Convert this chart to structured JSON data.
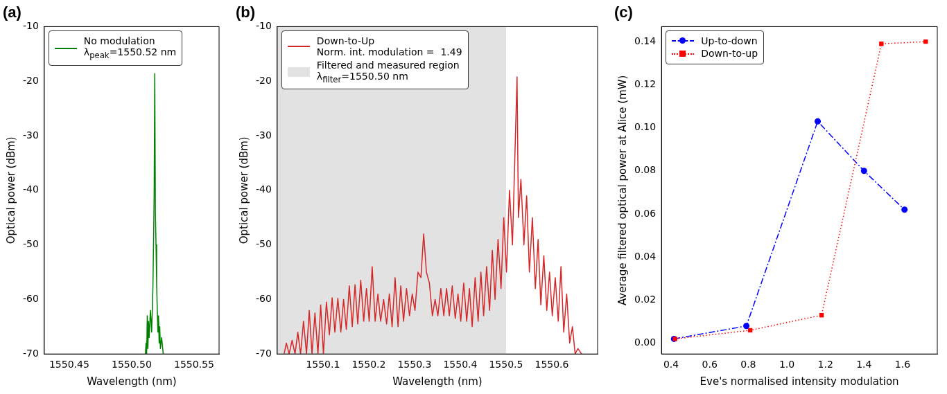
{
  "chart_data": [
    {
      "type": "line",
      "title": "(a)",
      "xlabel": "Wavelength (nm)",
      "ylabel": "Optical power (dBm)",
      "xlim": [
        1550.43,
        1550.57
      ],
      "xticks": [
        1550.45,
        {
          "value": 1550.5,
          "label": "1550.50"
        },
        1550.55
      ],
      "ylim": [
        -70,
        -10
      ],
      "yticks": [
        -70,
        -60,
        -50,
        -40,
        -30,
        -20,
        -10
      ],
      "legend": "top left",
      "marker": "none",
      "series": [
        {
          "name": "No modulation\nλ$_{peak}$=1550.52 nm",
          "color": "#008000",
          "x": [
            1550.511,
            1550.5115,
            1550.512,
            1550.5125,
            1550.513,
            1550.5135,
            1550.514,
            1550.515,
            1550.516,
            1550.517,
            1550.5175,
            1550.518,
            1550.5185,
            1550.519,
            1550.5195,
            1550.52,
            1550.5205,
            1550.521,
            1550.5215,
            1550.522,
            1550.5225,
            1550.523,
            1550.524,
            1550.5253
          ],
          "values": [
            -70,
            -68,
            -70,
            -63,
            -69,
            -64,
            -67,
            -62,
            -66,
            -58,
            -50,
            -41,
            -18.6,
            -44,
            -50,
            -57,
            -62,
            -66,
            -63,
            -68,
            -65,
            -69,
            -67,
            -70
          ]
        }
      ]
    },
    {
      "type": "line",
      "title": "(b)",
      "xlabel": "Wavelength (nm)",
      "ylabel": "Optical power (dBm)",
      "xlim": [
        1550.0,
        1550.7
      ],
      "xticks": [
        1550.1,
        1550.2,
        1550.3,
        1550.4,
        1550.5,
        1550.6
      ],
      "ylim": [
        -70,
        -10
      ],
      "yticks": [
        -70,
        -60,
        -50,
        -40,
        -30,
        -20,
        -10
      ],
      "legend": "top left",
      "marker": "none",
      "bands": [
        {
          "axis": "x",
          "from": 1550.0,
          "to": 1550.5,
          "label": "Filtered and measured region\nλ$_{filter}$=1550.50 nm",
          "color": "#e2e2e2"
        }
      ],
      "series": [
        {
          "name": "Down-to-Up\nNorm. int. modulation =  1.49",
          "color": "#d62728",
          "x": [
            1550.015,
            1550.02,
            1550.026,
            1550.0325,
            1550.039,
            1550.045,
            1550.051,
            1550.0575,
            1550.064,
            1550.07,
            1550.076,
            1550.0825,
            1550.089,
            1550.095,
            1550.101,
            1550.1075,
            1550.114,
            1550.12,
            1550.126,
            1550.1325,
            1550.139,
            1550.145,
            1550.151,
            1550.1575,
            1550.164,
            1550.17,
            1550.176,
            1550.1825,
            1550.189,
            1550.195,
            1550.201,
            1550.2075,
            1550.214,
            1550.22,
            1550.226,
            1550.2325,
            1550.239,
            1550.245,
            1550.251,
            1550.2575,
            1550.264,
            1550.27,
            1550.276,
            1550.2825,
            1550.289,
            1550.295,
            1550.301,
            1550.3075,
            1550.314,
            1550.32,
            1550.326,
            1550.3325,
            1550.339,
            1550.345,
            1550.351,
            1550.3575,
            1550.364,
            1550.37,
            1550.376,
            1550.3825,
            1550.389,
            1550.395,
            1550.401,
            1550.4075,
            1550.414,
            1550.42,
            1550.426,
            1550.4325,
            1550.439,
            1550.445,
            1550.451,
            1550.4575,
            1550.464,
            1550.47,
            1550.476,
            1550.4825,
            1550.489,
            1550.495,
            1550.501,
            1550.5075,
            1550.514,
            1550.524,
            1550.527,
            1550.5325,
            1550.539,
            1550.545,
            1550.551,
            1550.5575,
            1550.564,
            1550.57,
            1550.576,
            1550.5825,
            1550.589,
            1550.595,
            1550.601,
            1550.6075,
            1550.614,
            1550.62,
            1550.626,
            1550.6325,
            1550.639,
            1550.645,
            1550.651,
            1550.657,
            1550.665
          ],
          "values": [
            -70,
            -68,
            -70,
            -67.5,
            -70,
            -66,
            -70,
            -64,
            -70,
            -62,
            -70,
            -62.5,
            -70,
            -61,
            -70,
            -60.5,
            -66.5,
            -59.7,
            -66,
            -59.8,
            -66,
            -60,
            -65.5,
            -57.5,
            -65,
            -57.3,
            -64.5,
            -56.5,
            -64,
            -58,
            -64,
            -54,
            -64,
            -59,
            -64,
            -60,
            -64.5,
            -59,
            -65,
            -56,
            -65,
            -57.5,
            -64,
            -58,
            -63,
            -59,
            -62,
            -55,
            -56,
            -48,
            -55,
            -57,
            -63,
            -60,
            -63,
            -58,
            -63,
            -58,
            -63,
            -57.5,
            -63.5,
            -59,
            -64,
            -57,
            -64,
            -58,
            -65,
            -56,
            -64,
            -55,
            -63,
            -54,
            -62,
            -51,
            -60,
            -49,
            -58,
            -45,
            -55,
            -40,
            -50,
            -19.2,
            -45,
            -38,
            -50,
            -41,
            -55,
            -45,
            -58,
            -49,
            -61,
            -52,
            -62,
            -55,
            -63,
            -56,
            -64,
            -54,
            -66,
            -59,
            -68,
            -65,
            -70,
            -69,
            -70
          ]
        }
      ]
    },
    {
      "type": "line",
      "title": "(c)",
      "xlabel": "Eve's normalised intensity modulation",
      "ylabel": "Average filtered optical power at Alice (mW)",
      "xlim": [
        0.35,
        1.78
      ],
      "xticks": [
        0.4,
        0.6,
        0.8,
        {
          "value": 1,
          "label": "1.0"
        },
        1.2,
        1.4,
        1.6
      ],
      "ylim": [
        -0.005,
        0.147
      ],
      "yticks": [
        {
          "value": 0,
          "label": "0.00"
        },
        0.02,
        0.04,
        0.06,
        0.08,
        {
          "value": 0.1,
          "label": "0.10"
        },
        0.12,
        0.14
      ],
      "legend": "top left",
      "series": [
        {
          "name": "Up-to-down",
          "color": "#0000ff",
          "marker": "circle",
          "line_style": "dashed",
          "x": [
            0.415,
            0.79,
            1.16,
            1.4,
            1.61
          ],
          "values": [
            0.002,
            0.008,
            0.103,
            0.08,
            0.062
          ]
        },
        {
          "name": "Down-to-up",
          "color": "#ff0000",
          "marker": "square",
          "line_style": "dotted",
          "x": [
            0.42,
            0.81,
            1.18,
            1.49,
            1.72
          ],
          "values": [
            0.002,
            0.006,
            0.013,
            0.139,
            0.14
          ]
        }
      ]
    }
  ]
}
